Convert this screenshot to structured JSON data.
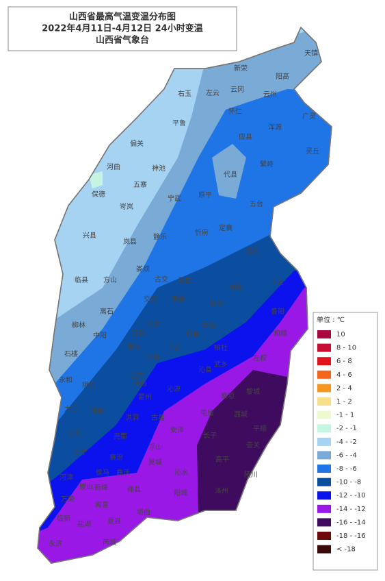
{
  "title": {
    "lines": [
      "山西省最高气温变温分布图",
      "2022年4月11日-4月12日 24小时变温",
      "山西省气象台"
    ]
  },
  "legend": {
    "unit": "单位 : ℃",
    "items": [
      {
        "label": "10",
        "color": "#a8083e"
      },
      {
        "label": "8 - 10",
        "color": "#c80d33"
      },
      {
        "label": "6 - 8",
        "color": "#e0141c"
      },
      {
        "label": "4 - 6",
        "color": "#f2661e"
      },
      {
        "label": "2 - 4",
        "color": "#f7951f"
      },
      {
        "label": "1 - 2",
        "color": "#f8df8a"
      },
      {
        "label": "-1 - 1",
        "color": "#eef9d0"
      },
      {
        "label": "-2 - -1",
        "color": "#c6f4e2"
      },
      {
        "label": "-4 - -2",
        "color": "#a7d3f3"
      },
      {
        "label": "-6 - -4",
        "color": "#7aaad6"
      },
      {
        "label": "-8 - -6",
        "color": "#1f75e6"
      },
      {
        "label": "-10 - -8",
        "color": "#0b4d9e"
      },
      {
        "label": "-12 - -10",
        "color": "#0b12ee"
      },
      {
        "label": "-14 - -12",
        "color": "#9a18e6"
      },
      {
        "label": "-16 - -14",
        "color": "#3f0b5e"
      },
      {
        "label": "-18 - -16",
        "color": "#6c0a0c"
      },
      {
        "label": "< -18",
        "color": "#3b0b0b"
      }
    ]
  },
  "counties": [
    "天镇",
    "新荣",
    "阳高",
    "左云",
    "云冈",
    "右玉",
    "云州",
    "平鲁",
    "怀仁",
    "浑源",
    "偏关",
    "应县",
    "广灵",
    "河曲",
    "神池",
    "五寨",
    "代县",
    "繁峙",
    "灵丘",
    "保德",
    "岢岚",
    "宁武",
    "原平",
    "五台",
    "兴县",
    "岚县",
    "静乐",
    "定襄",
    "忻府",
    "临县",
    "方山",
    "娄烦",
    "古交",
    "阳曲",
    "盂县",
    "平定",
    "寿阳",
    "离石",
    "柳林",
    "中阳",
    "交城",
    "清徐",
    "榆次",
    "昔阳",
    "石楼",
    "汾阳",
    "文水",
    "太谷",
    "和顺",
    "孝义",
    "平遥",
    "祁县",
    "介休",
    "榆社",
    "左权",
    "永和",
    "隰县",
    "灵石",
    "沁县",
    "大宁",
    "蒲县",
    "汾西",
    "霍州",
    "沁源",
    "武乡",
    "黎城",
    "襄垣",
    "屯留",
    "潞城",
    "吉县",
    "洪洞",
    "古县",
    "安泽",
    "长子",
    "平顺",
    "乡宁",
    "尧都",
    "浮山",
    "壶关",
    "河津",
    "襄汾",
    "翼城",
    "高平",
    "陵川",
    "稷山",
    "曲沃",
    "侯马",
    "沁水",
    "阳城",
    "泽州",
    "万荣",
    "新绛",
    "闻喜",
    "绛县",
    "垣曲",
    "临猗",
    "盐湖",
    "夏县",
    "永济",
    "芮城"
  ]
}
